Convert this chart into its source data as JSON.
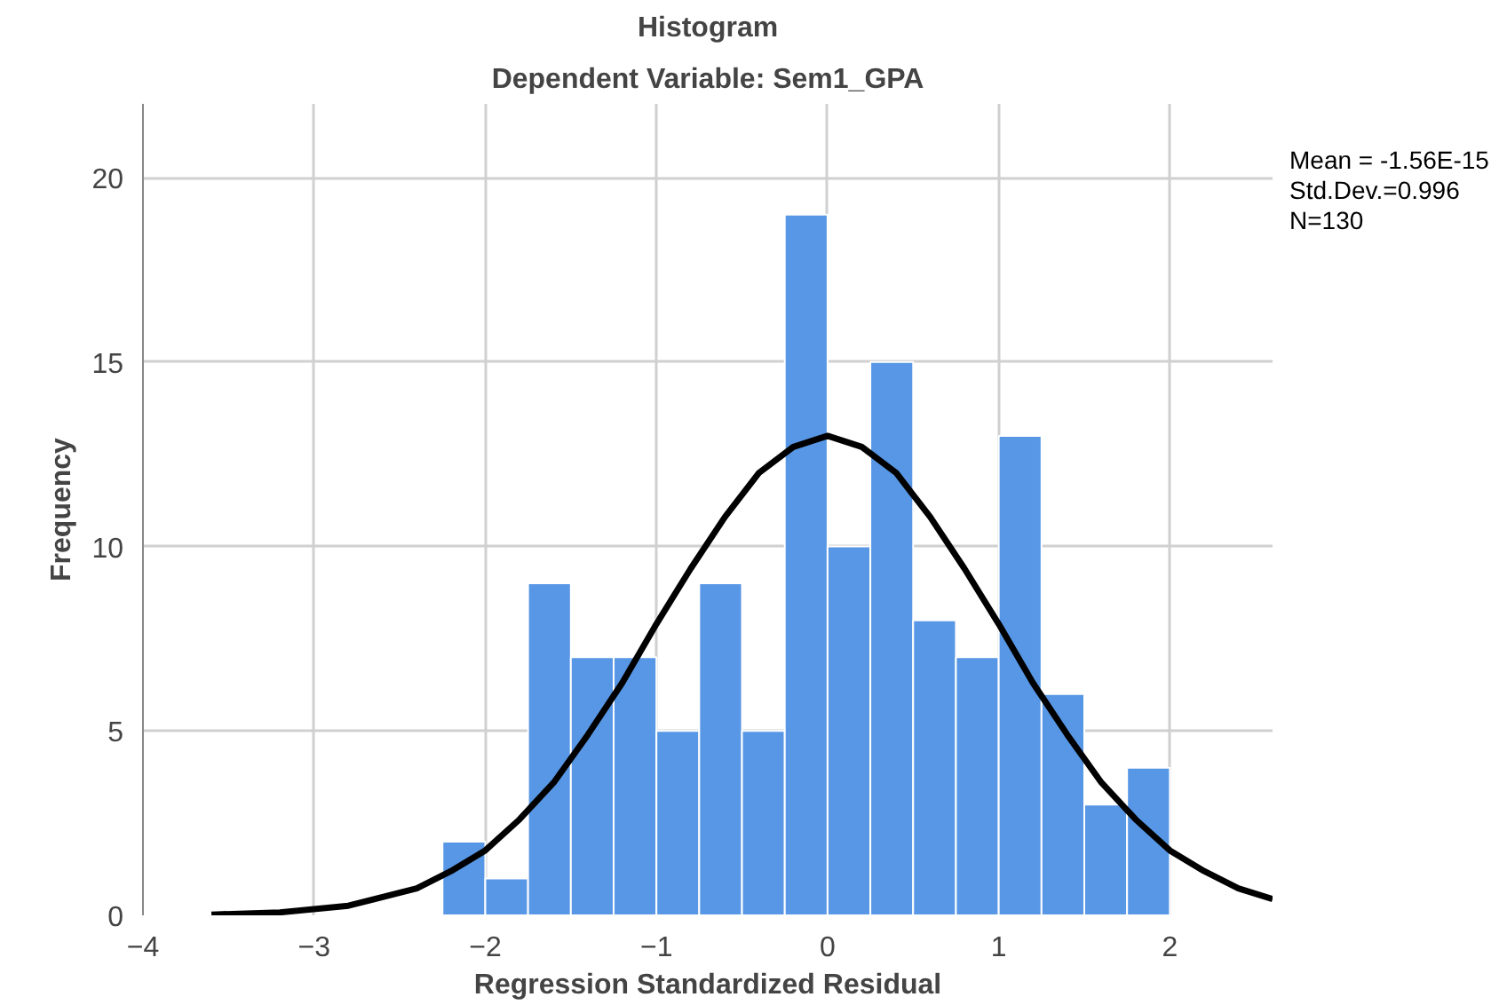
{
  "chart_data": {
    "type": "histogram",
    "title": "Histogram",
    "subtitle": "Dependent Variable: Sem1_GPA",
    "xlabel": "Regression Standardized Residual",
    "ylabel": "Frequency",
    "bins": [
      -2.25,
      -2.0,
      -1.75,
      -1.5,
      -1.25,
      -1.0,
      -0.75,
      -0.5,
      -0.25,
      0.0,
      0.25,
      0.5,
      0.75,
      1.0,
      1.25,
      1.5,
      1.75,
      2.0
    ],
    "values": [
      2,
      1,
      9,
      7,
      7,
      5,
      9,
      5,
      19,
      10,
      15,
      8,
      7,
      13,
      6,
      3,
      4
    ],
    "color": "#5797e5",
    "series": [
      {
        "type": "line",
        "color": "#000000",
        "x": [
          -3.6,
          -3.2,
          -2.8,
          -2.4,
          -2.2,
          -2.0,
          -1.8,
          -1.6,
          -1.4,
          -1.2,
          -1.0,
          -0.8,
          -0.6,
          -0.4,
          -0.2,
          0.0,
          0.2,
          0.4,
          0.6,
          0.8,
          1.0,
          1.2,
          1.4,
          1.6,
          1.8,
          2.0,
          2.2,
          2.4,
          2.6
        ],
        "values": [
          0.02,
          0.08,
          0.26,
          0.73,
          1.2,
          1.76,
          2.6,
          3.6,
          4.9,
          6.3,
          7.9,
          9.4,
          10.8,
          12.0,
          12.7,
          13.0,
          12.7,
          12.0,
          10.8,
          9.4,
          7.9,
          6.3,
          4.9,
          3.6,
          2.6,
          1.76,
          1.2,
          0.73,
          0.44
        ]
      }
    ],
    "xlim": [
      -4,
      2.6
    ],
    "xticks": [
      -4,
      -3,
      -2,
      -1,
      0,
      1,
      2
    ],
    "ylim": [
      0,
      22
    ],
    "yticks": [
      0,
      5,
      10,
      15,
      20
    ],
    "grid": true,
    "annotations": [
      "Mean = -1.56E-15",
      "Std.Dev.=0.996",
      "N=130"
    ]
  }
}
